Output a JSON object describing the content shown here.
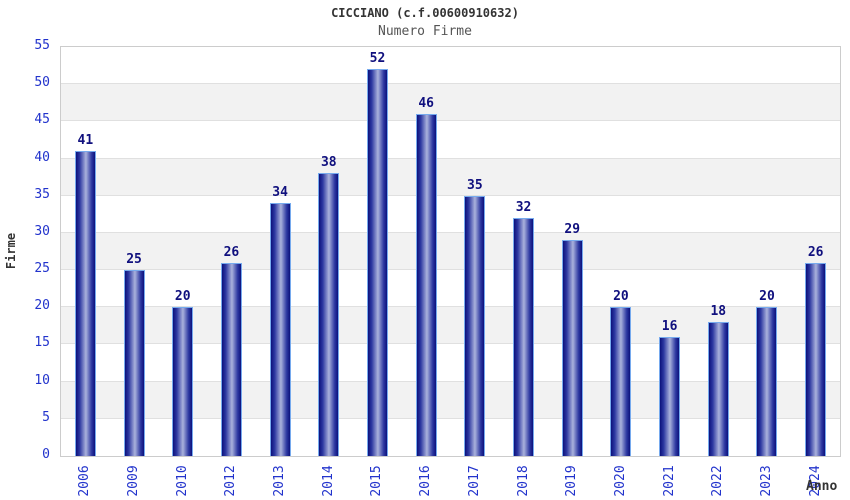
{
  "chart_data": {
    "type": "bar",
    "title": "CICCIANO (c.f.00600910632)",
    "subtitle": "Numero Firme",
    "xlabel": "Anno",
    "ylabel": "Firme",
    "categories": [
      "2006",
      "2009",
      "2010",
      "2012",
      "2013",
      "2014",
      "2015",
      "2016",
      "2017",
      "2018",
      "2019",
      "2020",
      "2021",
      "2022",
      "2023",
      "2024"
    ],
    "values": [
      41,
      25,
      20,
      26,
      34,
      38,
      52,
      46,
      35,
      32,
      29,
      20,
      16,
      18,
      20,
      26
    ],
    "ylim": [
      0,
      55
    ],
    "ytick_step": 5,
    "grid": "alternating horizontal bands with light gridlines every 5",
    "legend_position": "none",
    "value_labels": "above bars",
    "colors": {
      "bar_edge": "#0c117c",
      "bar_mid": "#2e39a2",
      "bar_center": "#aab2dc",
      "bar_border": "#76aaee",
      "tick_label": "#2233cc",
      "value_label": "#10107e",
      "band_gray": "#f2f2f2",
      "band_white": "#ffffff",
      "grid_line": "#e0e0e0",
      "plot_border": "#cccccc",
      "title_color": "#333333",
      "subtitle_color": "#555555",
      "axis_title_color": "#333333"
    }
  }
}
